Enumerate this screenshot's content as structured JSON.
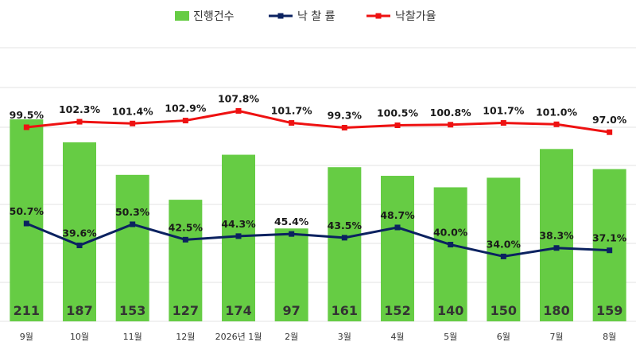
{
  "chart_data": {
    "type": "bar",
    "categories": [
      "9월",
      "10월",
      "11월",
      "12월",
      "2026년 1월",
      "2월",
      "3월",
      "4월",
      "5월",
      "6월",
      "7월",
      "8월"
    ],
    "series": [
      {
        "name": "진행건수",
        "type": "bar",
        "color": "#66cc44",
        "values": [
          211,
          187,
          153,
          127,
          174,
          97,
          161,
          152,
          140,
          150,
          180,
          159
        ],
        "labels": [
          "211",
          "187",
          "153",
          "127",
          "174",
          "97",
          "161",
          "152",
          "140",
          "150",
          "180",
          "159"
        ]
      },
      {
        "name": "낙 찰 률",
        "type": "line",
        "color": "#0b2260",
        "values": [
          50.7,
          39.6,
          50.3,
          42.5,
          44.3,
          45.4,
          43.5,
          48.7,
          40.0,
          34.0,
          38.3,
          37.1
        ],
        "labels": [
          "50.7%",
          "39.6%",
          "50.3%",
          "42.5%",
          "44.3%",
          "45.4%",
          "43.5%",
          "48.7%",
          "40.0%",
          "34.0%",
          "38.3%",
          "37.1%"
        ]
      },
      {
        "name": "낙찰가율",
        "type": "line",
        "color": "#ee1111",
        "values": [
          99.5,
          102.3,
          101.4,
          102.9,
          107.8,
          101.7,
          99.3,
          100.5,
          100.8,
          101.7,
          101.0,
          97.0
        ],
        "labels": [
          "99.5%",
          "102.3%",
          "101.4%",
          "102.9%",
          "107.8%",
          "101.7%",
          "99.3%",
          "100.5%",
          "100.8%",
          "101.7%",
          "101.0%",
          "97.0%"
        ]
      }
    ],
    "legend_position": "top",
    "grid": true,
    "bar_axis_range": [
      0,
      250
    ],
    "line_axis_range": [
      0,
      120
    ]
  }
}
